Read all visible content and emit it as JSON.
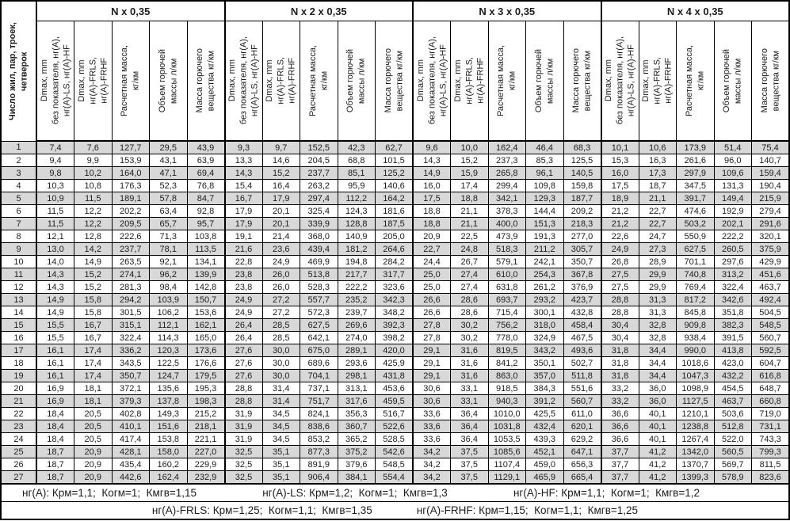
{
  "table": {
    "corner_header": "Число жил, пар, троек,\nчетверок",
    "groups": [
      "N x 0,35",
      "N x 2 x 0,35",
      "N x 3 x 0,35",
      "N x 4 x 0,35"
    ],
    "col_headers": [
      "Dmax, mm\nбез показателя, нг(А),\nнг(А)-LS, нг(А)-HF",
      "Dmax, mm\nнг(А)-FRLS,\nнг(А)-FRHF",
      "Расчетная масса,\nкг/км",
      "Объем горючей\nмассы л/км",
      "Масса горючего\nвещества кг/км"
    ],
    "rows": [
      {
        "n": "1",
        "values": [
          "7,4",
          "7,6",
          "127,7",
          "29,5",
          "43,9",
          "9,3",
          "9,7",
          "152,5",
          "42,3",
          "62,7",
          "9,6",
          "10,0",
          "162,4",
          "46,4",
          "68,3",
          "10,1",
          "10,6",
          "173,9",
          "51,4",
          "75,4"
        ]
      },
      {
        "n": "2",
        "values": [
          "9,4",
          "9,9",
          "153,9",
          "43,1",
          "63,9",
          "13,3",
          "14,6",
          "204,5",
          "68,8",
          "101,5",
          "14,3",
          "15,2",
          "237,3",
          "85,3",
          "125,5",
          "15,3",
          "16,3",
          "261,6",
          "96,0",
          "140,7"
        ]
      },
      {
        "n": "3",
        "values": [
          "9,8",
          "10,2",
          "164,0",
          "47,1",
          "69,4",
          "14,3",
          "15,2",
          "237,7",
          "85,1",
          "125,2",
          "14,9",
          "15,9",
          "265,8",
          "96,1",
          "140,5",
          "16,0",
          "17,3",
          "297,9",
          "109,6",
          "159,4"
        ]
      },
      {
        "n": "4",
        "values": [
          "10,3",
          "10,8",
          "176,3",
          "52,3",
          "76,8",
          "15,4",
          "16,4",
          "263,2",
          "95,9",
          "140,6",
          "16,0",
          "17,4",
          "299,4",
          "109,8",
          "159,8",
          "17,5",
          "18,7",
          "347,5",
          "131,3",
          "190,4"
        ]
      },
      {
        "n": "5",
        "values": [
          "10,9",
          "11,5",
          "189,1",
          "57,8",
          "84,7",
          "16,7",
          "17,9",
          "297,4",
          "112,2",
          "164,2",
          "17,5",
          "18,8",
          "342,1",
          "129,3",
          "187,7",
          "18,9",
          "21,1",
          "391,7",
          "149,4",
          "215,9"
        ]
      },
      {
        "n": "6",
        "values": [
          "11,5",
          "12,2",
          "202,2",
          "63,4",
          "92,8",
          "17,9",
          "20,1",
          "325,4",
          "124,3",
          "181,6",
          "18,8",
          "21,1",
          "378,3",
          "144,4",
          "209,2",
          "21,2",
          "22,7",
          "474,6",
          "192,9",
          "279,4"
        ]
      },
      {
        "n": "7",
        "values": [
          "11,5",
          "12,2",
          "209,5",
          "65,7",
          "95,7",
          "17,9",
          "20,1",
          "339,9",
          "128,8",
          "187,5",
          "18,8",
          "21,1",
          "400,0",
          "151,3",
          "218,3",
          "21,2",
          "22,7",
          "503,2",
          "202,1",
          "291,6"
        ]
      },
      {
        "n": "8",
        "values": [
          "12,1",
          "12,8",
          "222,6",
          "71,3",
          "103,8",
          "19,1",
          "21,4",
          "368,0",
          "140,9",
          "205,0",
          "20,9",
          "22,5",
          "473,9",
          "191,3",
          "277,0",
          "22,6",
          "24,7",
          "550,9",
          "222,2",
          "320,1"
        ]
      },
      {
        "n": "9",
        "values": [
          "13,0",
          "14,2",
          "237,7",
          "78,1",
          "113,5",
          "21,6",
          "23,6",
          "439,4",
          "181,2",
          "264,6",
          "22,7",
          "24,8",
          "518,3",
          "211,2",
          "305,7",
          "24,9",
          "27,3",
          "627,5",
          "260,5",
          "375,9"
        ]
      },
      {
        "n": "10",
        "values": [
          "14,0",
          "14,9",
          "263,5",
          "92,1",
          "134,1",
          "22,8",
          "24,9",
          "469,9",
          "194,8",
          "284,2",
          "24,4",
          "26,7",
          "579,1",
          "242,1",
          "350,7",
          "26,8",
          "28,9",
          "701,1",
          "297,6",
          "429,9"
        ]
      },
      {
        "n": "11",
        "values": [
          "14,3",
          "15,2",
          "274,1",
          "96,2",
          "139,9",
          "23,8",
          "26,0",
          "513,8",
          "217,7",
          "317,7",
          "25,0",
          "27,4",
          "610,0",
          "254,3",
          "367,8",
          "27,5",
          "29,9",
          "740,8",
          "313,2",
          "451,6"
        ]
      },
      {
        "n": "12",
        "values": [
          "14,3",
          "15,2",
          "281,3",
          "98,4",
          "142,8",
          "23,8",
          "26,0",
          "528,3",
          "222,2",
          "323,6",
          "25,0",
          "27,4",
          "631,8",
          "261,2",
          "376,9",
          "27,5",
          "29,9",
          "769,4",
          "322,4",
          "463,7"
        ]
      },
      {
        "n": "13",
        "values": [
          "14,9",
          "15,8",
          "294,2",
          "103,9",
          "150,7",
          "24,9",
          "27,2",
          "557,7",
          "235,2",
          "342,3",
          "26,6",
          "28,6",
          "693,7",
          "293,2",
          "423,7",
          "28,8",
          "31,3",
          "817,2",
          "342,6",
          "492,4"
        ]
      },
      {
        "n": "14",
        "values": [
          "14,9",
          "15,8",
          "301,5",
          "106,2",
          "153,6",
          "24,9",
          "27,2",
          "572,3",
          "239,7",
          "348,2",
          "26,6",
          "28,6",
          "715,4",
          "300,1",
          "432,8",
          "28,8",
          "31,3",
          "845,8",
          "351,8",
          "504,5"
        ]
      },
      {
        "n": "15",
        "values": [
          "15,5",
          "16,7",
          "315,1",
          "112,1",
          "162,1",
          "26,4",
          "28,5",
          "627,5",
          "269,6",
          "392,3",
          "27,8",
          "30,2",
          "756,2",
          "318,0",
          "458,4",
          "30,4",
          "32,8",
          "909,8",
          "382,3",
          "548,5"
        ]
      },
      {
        "n": "16",
        "values": [
          "15,5",
          "16,7",
          "322,4",
          "114,3",
          "165,0",
          "26,4",
          "28,5",
          "642,1",
          "274,0",
          "398,2",
          "27,8",
          "30,2",
          "778,0",
          "324,9",
          "467,5",
          "30,4",
          "32,8",
          "938,4",
          "391,5",
          "560,7"
        ]
      },
      {
        "n": "17",
        "values": [
          "16,1",
          "17,4",
          "336,2",
          "120,3",
          "173,6",
          "27,6",
          "30,0",
          "675,0",
          "289,1",
          "420,0",
          "29,1",
          "31,6",
          "819,5",
          "343,2",
          "493,6",
          "31,8",
          "34,4",
          "990,0",
          "413,8",
          "592,5"
        ]
      },
      {
        "n": "18",
        "values": [
          "16,1",
          "17,4",
          "343,5",
          "122,5",
          "176,6",
          "27,6",
          "30,0",
          "689,6",
          "293,6",
          "425,9",
          "29,1",
          "31,6",
          "841,2",
          "350,1",
          "502,7",
          "31,8",
          "34,4",
          "1018,6",
          "423,0",
          "604,7"
        ]
      },
      {
        "n": "19",
        "values": [
          "16,1",
          "17,4",
          "350,7",
          "124,7",
          "179,5",
          "27,6",
          "30,0",
          "704,1",
          "298,1",
          "431,8",
          "29,1",
          "31,6",
          "863,0",
          "357,0",
          "511,8",
          "31,8",
          "34,4",
          "1047,3",
          "432,2",
          "616,8"
        ]
      },
      {
        "n": "20",
        "values": [
          "16,9",
          "18,1",
          "372,1",
          "135,6",
          "195,3",
          "28,8",
          "31,4",
          "737,1",
          "313,1",
          "453,6",
          "30,6",
          "33,1",
          "918,5",
          "384,3",
          "551,6",
          "33,2",
          "36,0",
          "1098,9",
          "454,5",
          "648,7"
        ]
      },
      {
        "n": "21",
        "values": [
          "16,9",
          "18,1",
          "379,3",
          "137,8",
          "198,3",
          "28,8",
          "31,4",
          "751,7",
          "317,6",
          "459,5",
          "30,6",
          "33,1",
          "940,3",
          "391,2",
          "560,7",
          "33,2",
          "36,0",
          "1127,5",
          "463,7",
          "660,8"
        ]
      },
      {
        "n": "22",
        "values": [
          "18,4",
          "20,5",
          "402,8",
          "149,3",
          "215,2",
          "31,9",
          "34,5",
          "824,1",
          "356,3",
          "516,7",
          "33,6",
          "36,4",
          "1010,0",
          "425,5",
          "611,0",
          "36,6",
          "40,1",
          "1210,1",
          "503,6",
          "719,0"
        ]
      },
      {
        "n": "23",
        "values": [
          "18,4",
          "20,5",
          "410,1",
          "151,6",
          "218,1",
          "31,9",
          "34,5",
          "838,6",
          "360,7",
          "522,6",
          "33,6",
          "36,4",
          "1031,8",
          "432,4",
          "620,1",
          "36,6",
          "40,1",
          "1238,8",
          "512,8",
          "731,1"
        ]
      },
      {
        "n": "24",
        "values": [
          "18,4",
          "20,5",
          "417,4",
          "153,8",
          "221,1",
          "31,9",
          "34,5",
          "853,2",
          "365,2",
          "528,5",
          "33,6",
          "36,4",
          "1053,5",
          "439,3",
          "629,2",
          "36,6",
          "40,1",
          "1267,4",
          "522,0",
          "743,3"
        ]
      },
      {
        "n": "25",
        "values": [
          "18,7",
          "20,9",
          "428,1",
          "158,0",
          "227,0",
          "32,5",
          "35,1",
          "877,3",
          "375,2",
          "542,6",
          "34,2",
          "37,5",
          "1085,6",
          "452,1",
          "647,1",
          "37,7",
          "41,2",
          "1342,0",
          "560,5",
          "799,3"
        ]
      },
      {
        "n": "26",
        "values": [
          "18,7",
          "20,9",
          "435,4",
          "160,2",
          "229,9",
          "32,5",
          "35,1",
          "891,9",
          "379,6",
          "548,5",
          "34,2",
          "37,5",
          "1107,4",
          "459,0",
          "656,3",
          "37,7",
          "41,2",
          "1370,7",
          "569,7",
          "811,5"
        ]
      },
      {
        "n": "27",
        "values": [
          "18,7",
          "20,9",
          "442,6",
          "162,4",
          "232,9",
          "32,5",
          "35,1",
          "906,4",
          "384,1",
          "554,4",
          "34,2",
          "37,5",
          "1129,1",
          "465,9",
          "665,4",
          "37,7",
          "41,2",
          "1399,3",
          "578,9",
          "823,6"
        ]
      }
    ]
  },
  "footnotes": {
    "line1": [
      "нг(А): Крм=1,1;  Когм=1;  Кмгв=1,15",
      "нг(А)-LS: Крм=1,2;  Когм=1;  Кмгв=1,3",
      "нг(А)-HF: Крм=1,1;  Когм=1;  Кмгв=1,2"
    ],
    "line2": [
      "нг(А)-FRLS: Крм=1,25;  Когм=1,1;  Кмгв=1,35",
      "нг(А)-FRHF: Крм=1,15;  Когм=1,1;  Кмгв=1,25"
    ]
  },
  "colors": {
    "stripe": "#d8d8d8",
    "border": "#000000"
  }
}
